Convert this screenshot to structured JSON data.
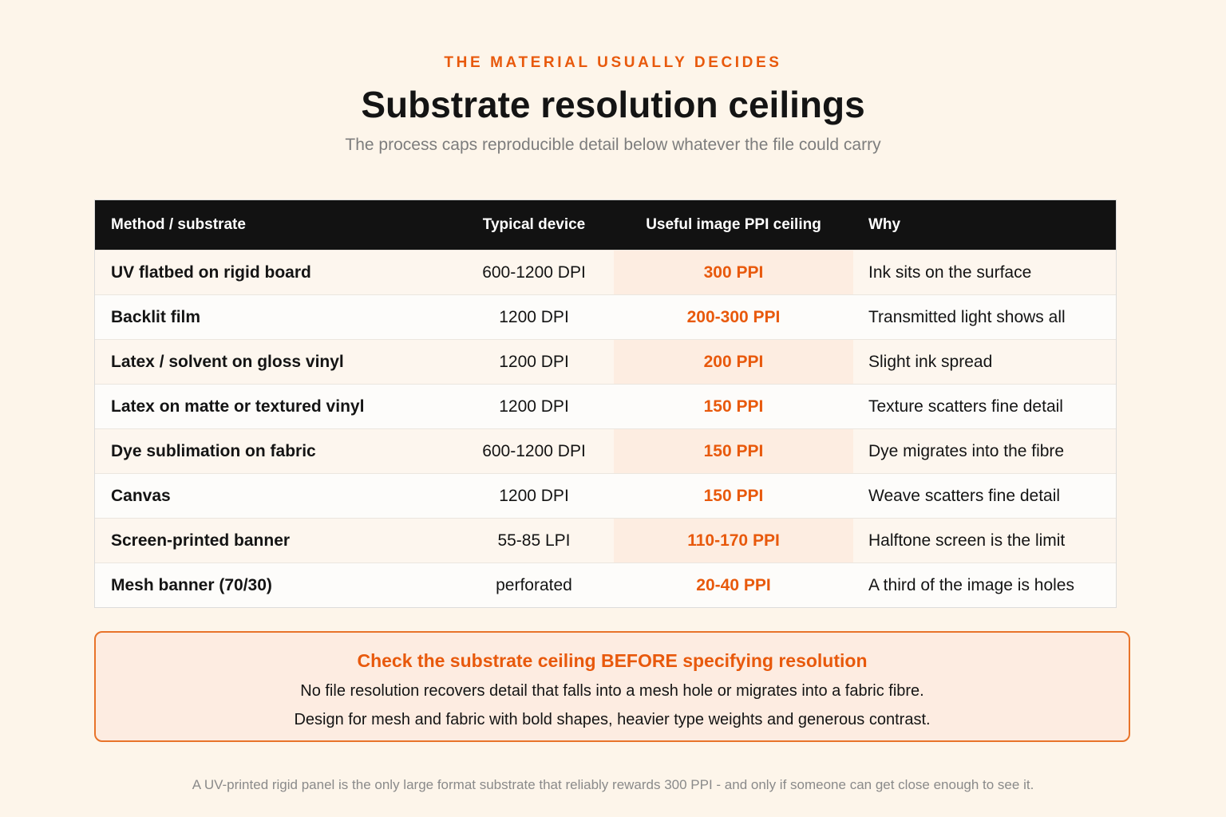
{
  "header": {
    "eyebrow": "THE MATERIAL USUALLY DECIDES",
    "title": "Substrate resolution ceilings",
    "subtitle": "The process caps reproducible detail below whatever the file could carry"
  },
  "table": {
    "columns": [
      "Method / substrate",
      "Typical device",
      "Useful image PPI ceiling",
      "Why"
    ],
    "rows": [
      [
        "UV flatbed on rigid board",
        "600-1200 DPI",
        "300 PPI",
        "Ink sits on the surface"
      ],
      [
        "Backlit film",
        "1200 DPI",
        "200-300 PPI",
        "Transmitted light shows all"
      ],
      [
        "Latex / solvent on gloss vinyl",
        "1200 DPI",
        "200 PPI",
        "Slight ink spread"
      ],
      [
        "Latex on matte or textured vinyl",
        "1200 DPI",
        "150 PPI",
        "Texture scatters fine detail"
      ],
      [
        "Dye sublimation on fabric",
        "600-1200 DPI",
        "150 PPI",
        "Dye migrates into the fibre"
      ],
      [
        "Canvas",
        "1200 DPI",
        "150 PPI",
        "Weave scatters fine detail"
      ],
      [
        "Screen-printed banner",
        "55-85 LPI",
        "110-170 PPI",
        "Halftone screen is the limit"
      ],
      [
        "Mesh banner (70/30)",
        "perforated",
        "20-40 PPI",
        "A third of the image is holes"
      ]
    ]
  },
  "callout": {
    "title": "Check the substrate ceiling BEFORE specifying resolution",
    "line1": "No file resolution recovers detail that falls into a mesh hole or migrates into a fabric fibre.",
    "line2": "Design for mesh and fabric with bold shapes, heavier type weights and generous contrast."
  },
  "footnote": "A UV-printed rigid panel is the only large format substrate that reliably rewards 300 PPI - and only if someone can get close enough to see it.",
  "colors": {
    "accent": "#e8590c",
    "background": "#fdf5ea",
    "header_bg": "#121212"
  }
}
